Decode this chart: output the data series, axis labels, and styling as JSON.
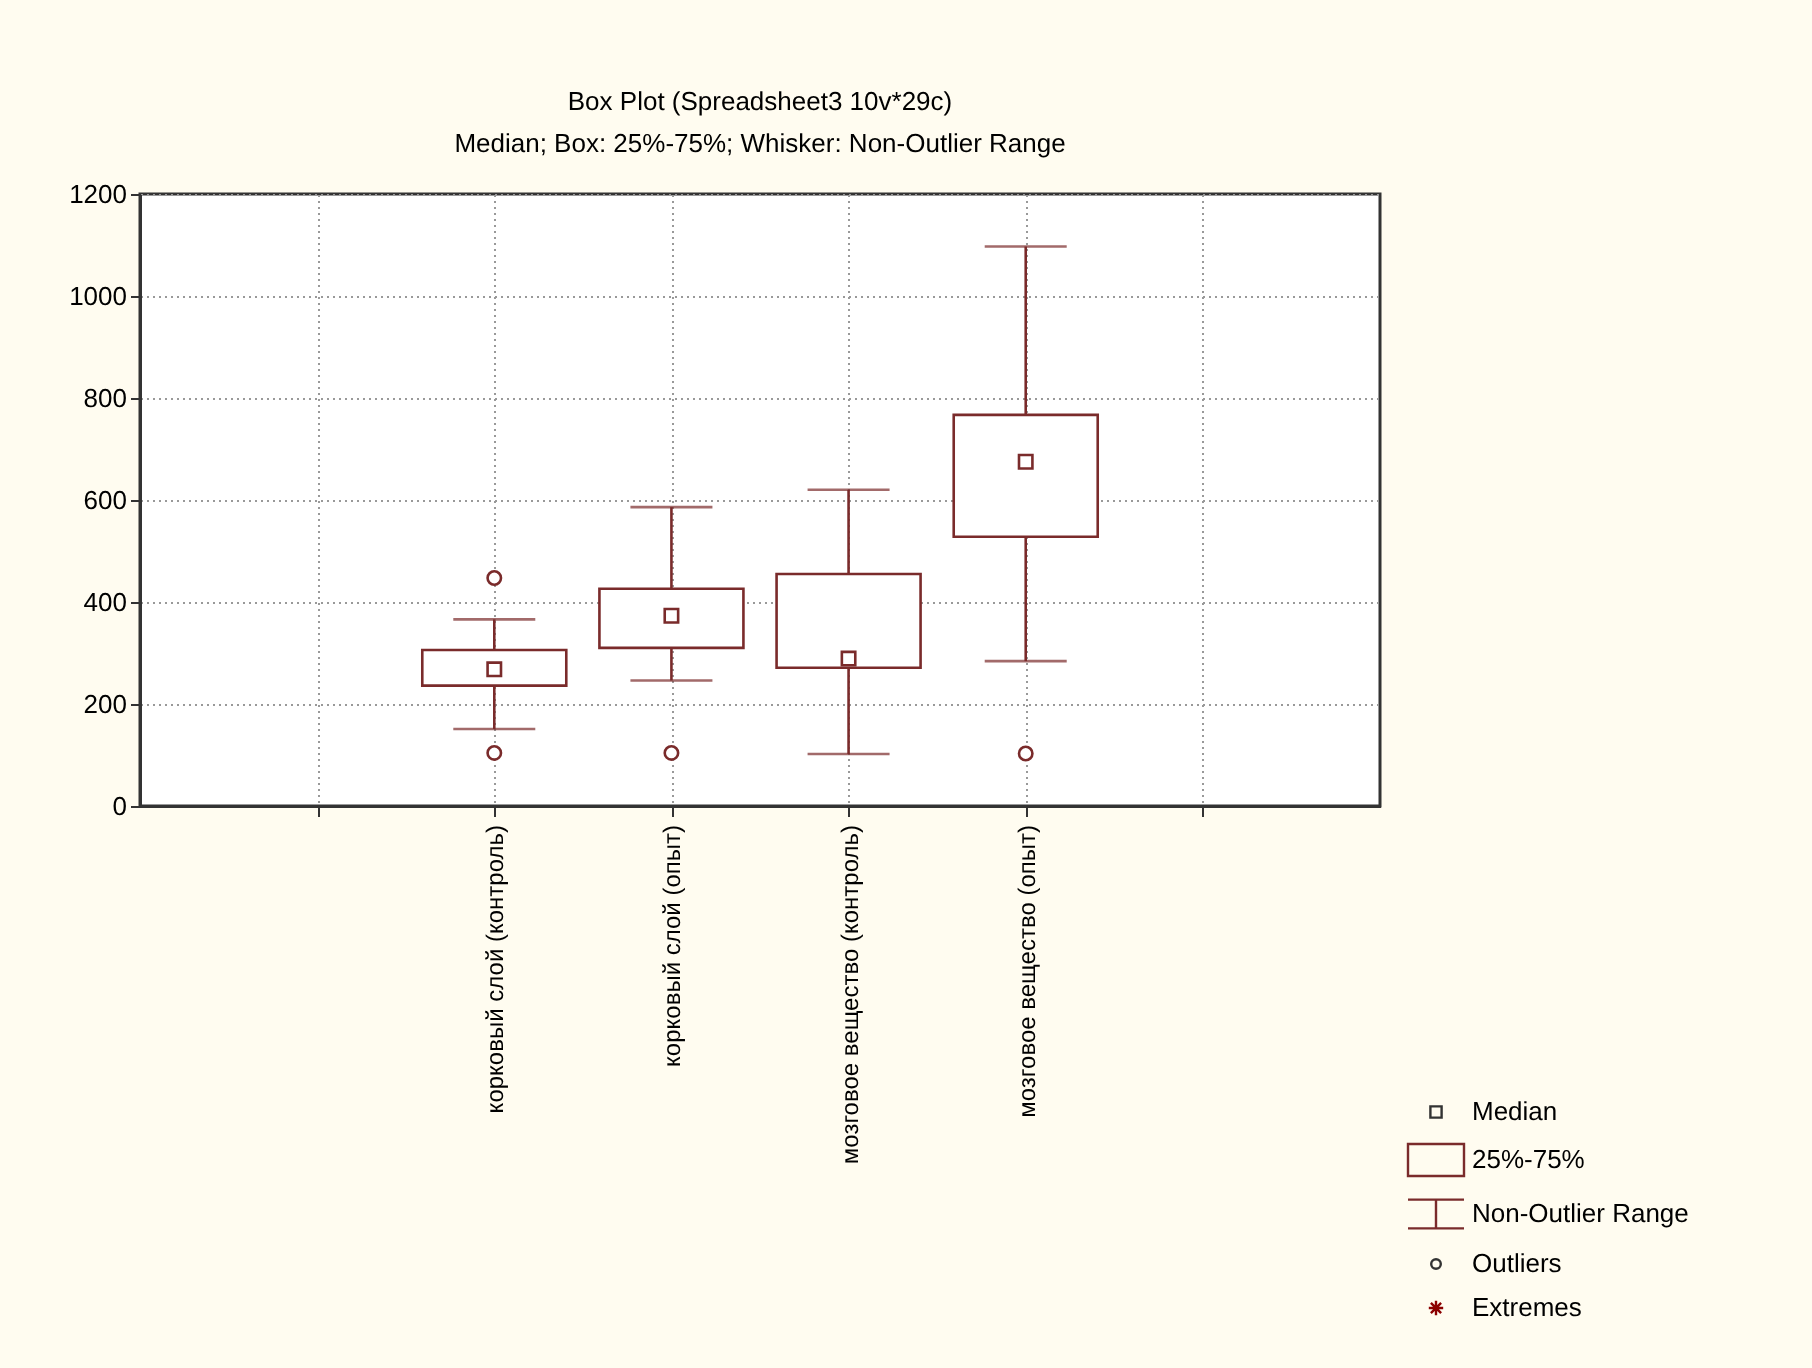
{
  "chart_data": {
    "type": "box",
    "title": "Box Plot (Spreadsheet3 10v*29c)",
    "subtitle": "Median; Box: 25%-75%; Whisker: Non-Outlier Range",
    "categories": [
      null,
      "корковый слой (контроль)",
      "корковый слой (опыт)",
      "мозговое вещество (контроль)",
      "мозговое вещество (опыт)",
      null
    ],
    "color": "#7a2b2b",
    "boxes": [
      null,
      {
        "low": 151,
        "q1": 236,
        "median": 268,
        "q3": 306,
        "high": 366,
        "outliers": [
          447,
          104
        ]
      },
      {
        "low": 246,
        "q1": 310,
        "median": 373,
        "q3": 426,
        "high": 586,
        "outliers": [
          104
        ]
      },
      {
        "low": 102,
        "q1": 271,
        "median": 289,
        "q3": 455,
        "high": 620
      },
      {
        "low": 284,
        "q1": 528,
        "median": 675,
        "q3": 767,
        "high": 1097,
        "outliers": [
          103
        ]
      },
      null
    ],
    "ylim": [
      0,
      1200
    ],
    "yticks": [
      0,
      200,
      400,
      600,
      800,
      1000,
      1200
    ],
    "grid": true,
    "annotations": [
      "Median",
      "25%-75%",
      "Non-Outlier Range",
      "Outliers",
      "Extremes"
    ]
  }
}
